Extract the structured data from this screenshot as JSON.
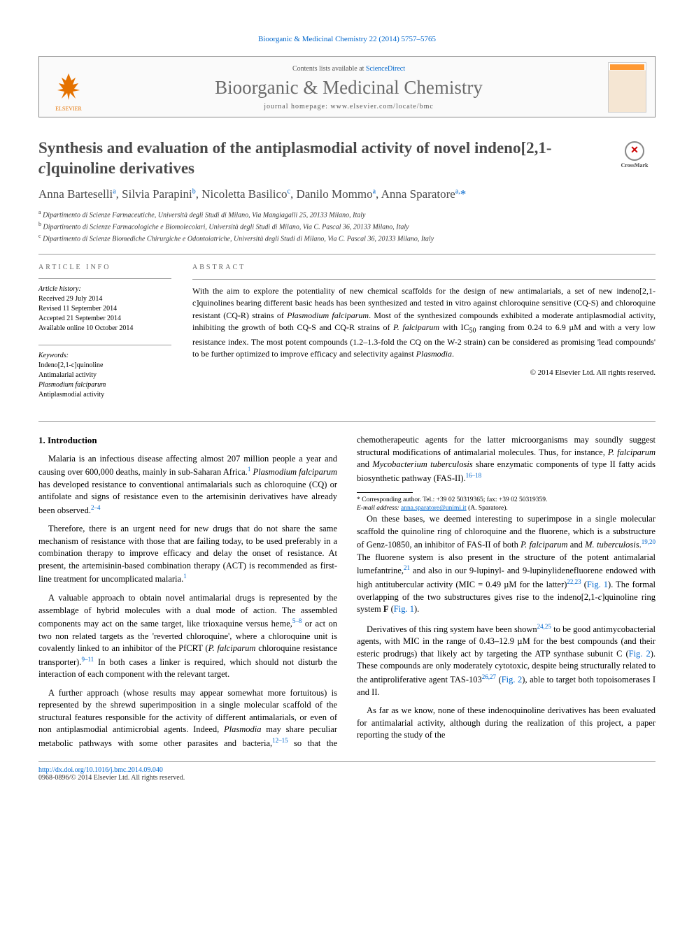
{
  "journal_ref": "Bioorganic & Medicinal Chemistry 22 (2014) 5757–5765",
  "publisher_logo_label": "ELSEVIER",
  "contents_line_prefix": "Contents lists available at ",
  "contents_link": "ScienceDirect",
  "journal_name": "Bioorganic & Medicinal Chemistry",
  "homepage_label": "journal homepage: www.elsevier.com/locate/bmc",
  "crossmark_label": "CrossMark",
  "title_html": "Synthesis and evaluation of the antiplasmodial activity of novel indeno[2,1-<i>c</i>]quinoline derivatives",
  "authors": [
    {
      "name": "Anna Barteselli",
      "aff": "a"
    },
    {
      "name": "Silvia Parapini",
      "aff": "b"
    },
    {
      "name": "Nicoletta Basilico",
      "aff": "c"
    },
    {
      "name": "Danilo Mommo",
      "aff": "a"
    },
    {
      "name": "Anna Sparatore",
      "aff": "a",
      "corr": true
    }
  ],
  "affiliations": [
    {
      "key": "a",
      "text": "Dipartimento di Scienze Farmaceutiche, Università degli Studi di Milano, Via Mangiagalli 25, 20133 Milano, Italy"
    },
    {
      "key": "b",
      "text": "Dipartimento di Scienze Farmacologiche e Biomolecolari, Università degli Studi di Milano, Via C. Pascal 36, 20133 Milano, Italy"
    },
    {
      "key": "c",
      "text": "Dipartimento di Scienze Biomediche Chirurgiche e Odontoiatriche, Università degli Studi di Milano, Via C. Pascal 36, 20133 Milano, Italy"
    }
  ],
  "article_info_heading": "ARTICLE INFO",
  "history_label": "Article history:",
  "history": [
    "Received 29 July 2014",
    "Revised 11 September 2014",
    "Accepted 21 September 2014",
    "Available online 10 October 2014"
  ],
  "keywords_label": "Keywords:",
  "keywords": [
    "Indeno[2,1-c]quinoline",
    "Antimalarial activity",
    "Plasmodium falciparum",
    "Antiplasmodial activity"
  ],
  "abstract_heading": "ABSTRACT",
  "abstract_text": "With the aim to explore the potentiality of new chemical scaffolds for the design of new antimalarials, a set of new indeno[2,1-c]quinolines bearing different basic heads has been synthesized and tested in vitro against chloroquine sensitive (CQ-S) and chloroquine resistant (CQ-R) strains of Plasmodium falciparum. Most of the synthesized compounds exhibited a moderate antiplasmodial activity, inhibiting the growth of both CQ-S and CQ-R strains of P. falciparum with IC50 ranging from 0.24 to 6.9 µM and with a very low resistance index. The most potent compounds (1.2–1.3-fold the CQ on the W-2 strain) can be considered as promising 'lead compounds' to be further optimized to improve efficacy and selectivity against Plasmodia.",
  "copyright": "© 2014 Elsevier Ltd. All rights reserved.",
  "section1_heading": "1. Introduction",
  "paragraphs": [
    "Malaria is an infectious disease affecting almost 207 million people a year and causing over 600,000 deaths, mainly in sub-Saharan Africa.<sup>1</sup> <i>Plasmodium falciparum</i> has developed resistance to conventional antimalarials such as chloroquine (CQ) or antifolate and signs of resistance even to the artemisinin derivatives have already been observed.<sup>2–4</sup>",
    "Therefore, there is an urgent need for new drugs that do not share the same mechanism of resistance with those that are failing today, to be used preferably in a combination therapy to improve efficacy and delay the onset of resistance. At present, the artemisinin-based combination therapy (ACT) is recommended as first-line treatment for uncomplicated malaria.<sup>1</sup>",
    "A valuable approach to obtain novel antimalarial drugs is represented by the assemblage of hybrid molecules with a dual mode of action. The assembled components may act on the same target, like trioxaquine versus heme,<sup>5–8</sup> or act on two non related targets as the 'reverted chloroquine', where a chloroquine unit is covalently linked to an inhibitor of the PfCRT (<i>P. falciparum</i> chloroquine resistance transporter).<sup>9–11</sup> In both cases a linker is required, which should not disturb the interaction of each component with the relevant target.",
    "A further approach (whose results may appear somewhat more fortuitous) is represented by the shrewd superimposition in a single molecular scaffold of the structural features responsible for the activity of different antimalarials, or even of non antiplasmodial antimicrobial agents. Indeed, <i>Plasmodia</i> may share peculiar metabolic pathways with some other parasites and bacteria,<sup>12–15</sup> so that the chemotherapeutic agents for the latter microorganisms may soundly suggest structural modifications of antimalarial molecules. Thus, for instance, <i>P. falciparum</i> and <i>Mycobacterium tuberculosis</i> share enzymatic components of type II fatty acids biosynthetic pathway (FAS-II).<sup>16–18</sup>",
    "On these bases, we deemed interesting to superimpose in a single molecular scaffold the quinoline ring of chloroquine and the fluorene, which is a substructure of Genz-10850, an inhibitor of FAS-II of both <i>P. falciparum</i> and <i>M. tuberculosis</i>.<sup>19,20</sup> The fluorene system is also present in the structure of the potent antimalarial lumefantrine,<sup>21</sup> and also in our 9-lupinyl- and 9-lupinylidenefluorene endowed with high antitubercular activity (MIC = 0.49 µM for the latter)<sup>22,23</sup> (<span class=\"figref\">Fig. 1</span>). The formal overlapping of the two substructures gives rise to the indeno[2,1-<i>c</i>]quinoline ring system <b>F</b> (<span class=\"figref\">Fig. 1</span>).",
    "Derivatives of this ring system have been shown<sup>24,25</sup> to be good antimycobacterial agents, with MIC in the range of 0.43–12.9 µM for the best compounds (and their esteric prodrugs) that likely act by targeting the ATP synthase subunit C (<span class=\"figref\">Fig. 2</span>). These compounds are only moderately cytotoxic, despite being structurally related to the antiproliferative agent TAS-103<sup>26,27</sup> (<span class=\"figref\">Fig. 2</span>), able to target both topoisomerases I and II.",
    "As far as we know, none of these indenoquinoline derivatives has been evaluated for antimalarial activity, although during the realization of this project, a paper reporting the study of the"
  ],
  "footnote_corr": "* Corresponding author. Tel.: +39 02 50319365; fax: +39 02 50319359.",
  "footnote_email_label": "E-mail address:",
  "footnote_email": "anna.sparatore@unimi.it",
  "footnote_email_attrib": "(A. Sparatore).",
  "doi_url": "http://dx.doi.org/10.1016/j.bmc.2014.09.040",
  "issn_line": "0968-0896/© 2014 Elsevier Ltd. All rights reserved.",
  "colors": {
    "link": "#0066cc",
    "title_gray": "#4a4a4a",
    "elsevier_orange": "#e57200",
    "text": "#000000",
    "rule": "#999999"
  }
}
